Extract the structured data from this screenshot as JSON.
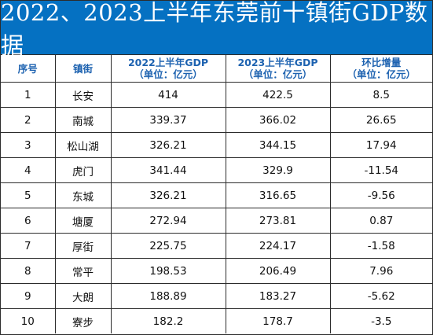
{
  "title": "2022、2023上半年东莞前十镇街GDP数据",
  "headers": {
    "index": "序号",
    "town": "镇街",
    "gdp2022": [
      "2022上半年GDP",
      "（单位：亿元）"
    ],
    "gdp2023": [
      "2023上半年GDP",
      "（单位：亿元）"
    ],
    "growth": [
      "环比增量",
      "（单位：亿元）"
    ]
  },
  "rows": [
    {
      "index": "1",
      "town": "长安",
      "gdp2022": "414",
      "gdp2023": "422.5",
      "growth": "8.5"
    },
    {
      "index": "2",
      "town": "南城",
      "gdp2022": "339.37",
      "gdp2023": "366.02",
      "growth": "26.65"
    },
    {
      "index": "3",
      "town": "松山湖",
      "gdp2022": "326.21",
      "gdp2023": "344.15",
      "growth": "17.94"
    },
    {
      "index": "4",
      "town": "虎门",
      "gdp2022": "341.44",
      "gdp2023": "329.9",
      "growth": "-11.54"
    },
    {
      "index": "5",
      "town": "东城",
      "gdp2022": "326.21",
      "gdp2023": "316.65",
      "growth": "-9.56"
    },
    {
      "index": "6",
      "town": "塘厦",
      "gdp2022": "272.94",
      "gdp2023": "273.81",
      "growth": "0.87"
    },
    {
      "index": "7",
      "town": "厚街",
      "gdp2022": "225.75",
      "gdp2023": "224.17",
      "growth": "-1.58"
    },
    {
      "index": "8",
      "town": "常平",
      "gdp2022": "198.53",
      "gdp2023": "206.49",
      "growth": "7.96"
    },
    {
      "index": "9",
      "town": "大朗",
      "gdp2022": "188.89",
      "gdp2023": "183.27",
      "growth": "-5.62"
    },
    {
      "index": "10",
      "town": "寮步",
      "gdp2022": "182.2",
      "gdp2023": "178.7",
      "growth": "-3.5"
    }
  ],
  "colors": {
    "title_bg": "#0571c2",
    "header_text": "#1d62b0",
    "grid": "#2c2c2c"
  }
}
